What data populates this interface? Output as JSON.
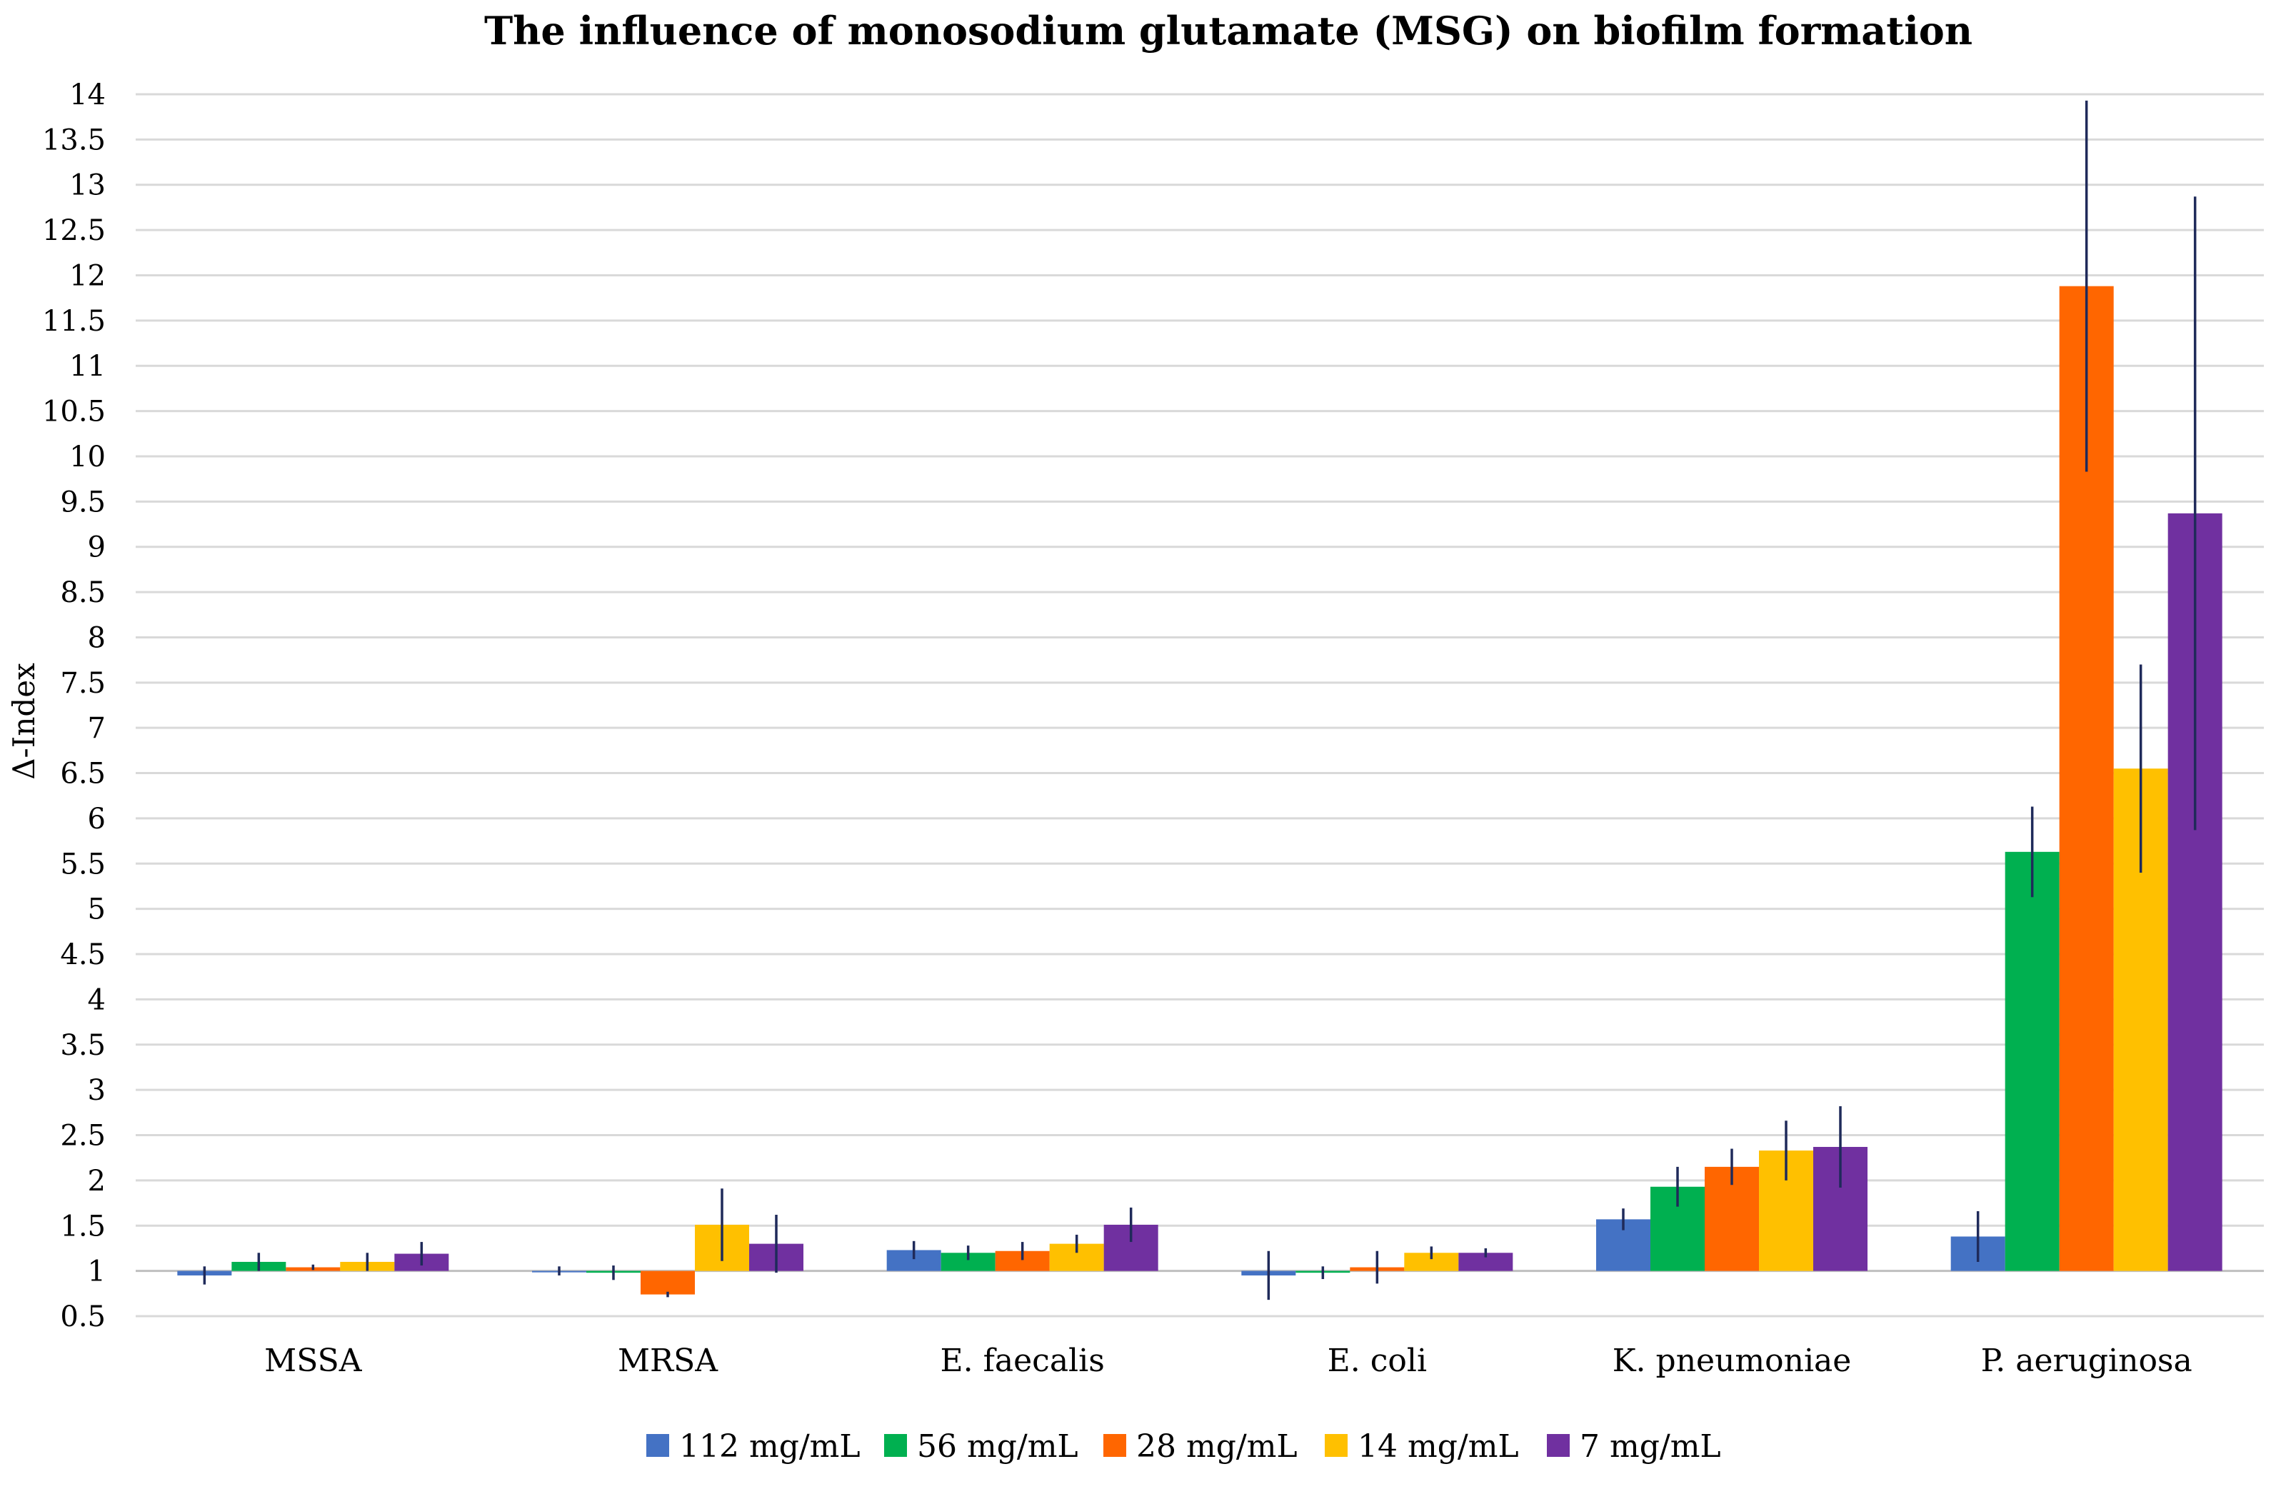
{
  "chart_data": {
    "type": "bar",
    "title": "The influence of monosodium glutamate (MSG) on biofilm formation",
    "xlabel": "",
    "ylabel": "Δ-Index",
    "ylim": [
      0.5,
      14
    ],
    "yticks": [
      "0.5",
      "1",
      "1.5",
      "2",
      "2.5",
      "3",
      "3.5",
      "4",
      "4.5",
      "5",
      "5.5",
      "6",
      "6.5",
      "7",
      "7.5",
      "8",
      "8.5",
      "9",
      "9.5",
      "10",
      "10.5",
      "11",
      "11.5",
      "12",
      "12.5",
      "13",
      "13.5",
      "14"
    ],
    "baseline": 1,
    "grid": true,
    "legend_position": "bottom",
    "categories": [
      "MSSA",
      "MRSA",
      "E. faecalis",
      "E. coli",
      "K. pneumoniae",
      "P. aeruginosa"
    ],
    "series": [
      {
        "name": "112 mg/mL",
        "color": "#4472C4",
        "values": [
          0.95,
          1.0,
          1.23,
          0.95,
          1.57,
          1.38
        ],
        "errors": [
          0.1,
          0.05,
          0.1,
          0.27,
          0.12,
          0.28
        ]
      },
      {
        "name": "56 mg/mL",
        "color": "#00B050",
        "values": [
          1.1,
          0.98,
          1.2,
          0.98,
          1.93,
          5.63
        ],
        "errors": [
          0.1,
          0.08,
          0.08,
          0.07,
          0.22,
          0.5
        ]
      },
      {
        "name": "28 mg/mL",
        "color": "#FF6600",
        "values": [
          1.04,
          0.74,
          1.22,
          1.04,
          2.15,
          11.88
        ],
        "errors": [
          0.03,
          0.03,
          0.1,
          0.18,
          0.2,
          2.05
        ]
      },
      {
        "name": "14 mg/mL",
        "color": "#FFC000",
        "values": [
          1.1,
          1.51,
          1.3,
          1.2,
          2.33,
          6.55
        ],
        "errors": [
          0.1,
          0.4,
          0.1,
          0.07,
          0.33,
          1.15
        ]
      },
      {
        "name": "7 mg/mL",
        "color": "#7030A0",
        "values": [
          1.19,
          1.3,
          1.51,
          1.2,
          2.37,
          9.37
        ],
        "errors": [
          0.13,
          0.32,
          0.19,
          0.05,
          0.45,
          3.5
        ]
      }
    ]
  }
}
